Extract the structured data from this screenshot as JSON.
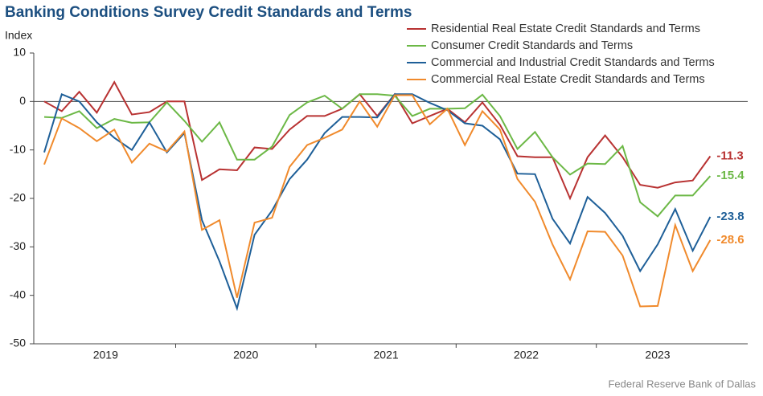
{
  "chart_data": {
    "type": "line",
    "title": "Banking Conditions Survey Credit Standards and Terms",
    "y_label": "Index",
    "source": "Federal Reserve Bank of Dallas",
    "x_labels": [
      "2019",
      "2020",
      "2021",
      "2022",
      "2023"
    ],
    "points_per_label": 8,
    "ylim": [
      -50,
      10
    ],
    "yticks": [
      10,
      0,
      -10,
      -20,
      -30,
      -40,
      -50
    ],
    "grid": false,
    "legend": "top-right",
    "series": [
      {
        "name": "Residential Real Estate Credit Standards and Terms",
        "color": "#b83232",
        "values": [
          0,
          -2,
          2,
          -2.3,
          4,
          -2.7,
          -2.2,
          0,
          0,
          -16.2,
          -14,
          -14.2,
          -9.5,
          -9.8,
          -5.8,
          -3,
          -3,
          -1.5,
          1.5,
          -3,
          1.5,
          -4.5,
          -3,
          -1.5,
          -4.3,
          -0.2,
          -4.8,
          -11.3,
          -11.5,
          -11.5,
          -20,
          -11.5,
          -7,
          -11.5,
          -17.2,
          -17.8,
          -16.7,
          -16.3,
          -11.3
        ]
      },
      {
        "name": "Consumer Credit Standards and Terms",
        "color": "#6cb846",
        "values": [
          -3.2,
          -3.4,
          -2,
          -5.5,
          -3.6,
          -4.4,
          -4.3,
          -0.2,
          -4,
          -8.3,
          -4.3,
          -12,
          -12,
          -9.3,
          -2.8,
          -0.2,
          1.2,
          -1.5,
          1.5,
          1.5,
          1.2,
          -3,
          -1.5,
          -1.5,
          -1.4,
          1.4,
          -3,
          -9.8,
          -6.3,
          -11.5,
          -15.1,
          -12.8,
          -12.9,
          -9.2,
          -20.8,
          -23.7,
          -19.4,
          -19.4,
          -15.4
        ]
      },
      {
        "name": "Commercial and Industrial Credit Standards and Terms",
        "color": "#1e5f98",
        "values": [
          -10.5,
          1.5,
          0,
          -4.3,
          -7.5,
          -10,
          -4.3,
          -10.5,
          -6.5,
          -24.5,
          -33,
          -42.7,
          -27.5,
          -22.5,
          -16,
          -12,
          -6.5,
          -3.2,
          -3.2,
          -3.3,
          1.5,
          1.5,
          -0.3,
          -1.8,
          -4.5,
          -5,
          -7.8,
          -14.9,
          -15,
          -24.2,
          -29.3,
          -19.7,
          -23,
          -27.7,
          -35,
          -29.5,
          -22.2,
          -30.8,
          -23.8
        ]
      },
      {
        "name": "Commercial Real Estate Credit Standards and Terms",
        "color": "#f08a2c",
        "values": [
          -13,
          -3.5,
          -5.5,
          -8.2,
          -5.8,
          -12.6,
          -8.7,
          -10.3,
          -6.2,
          -26.5,
          -24.5,
          -40.5,
          -25,
          -24,
          -13.5,
          -9,
          -7.5,
          -5.8,
          0,
          -5.2,
          1.3,
          1.3,
          -4.7,
          -1.5,
          -9,
          -2,
          -5.8,
          -16,
          -20.7,
          -29.5,
          -36.7,
          -26.8,
          -26.9,
          -31.8,
          -42.3,
          -42.2,
          -25.5,
          -35,
          -28.6
        ]
      }
    ]
  }
}
